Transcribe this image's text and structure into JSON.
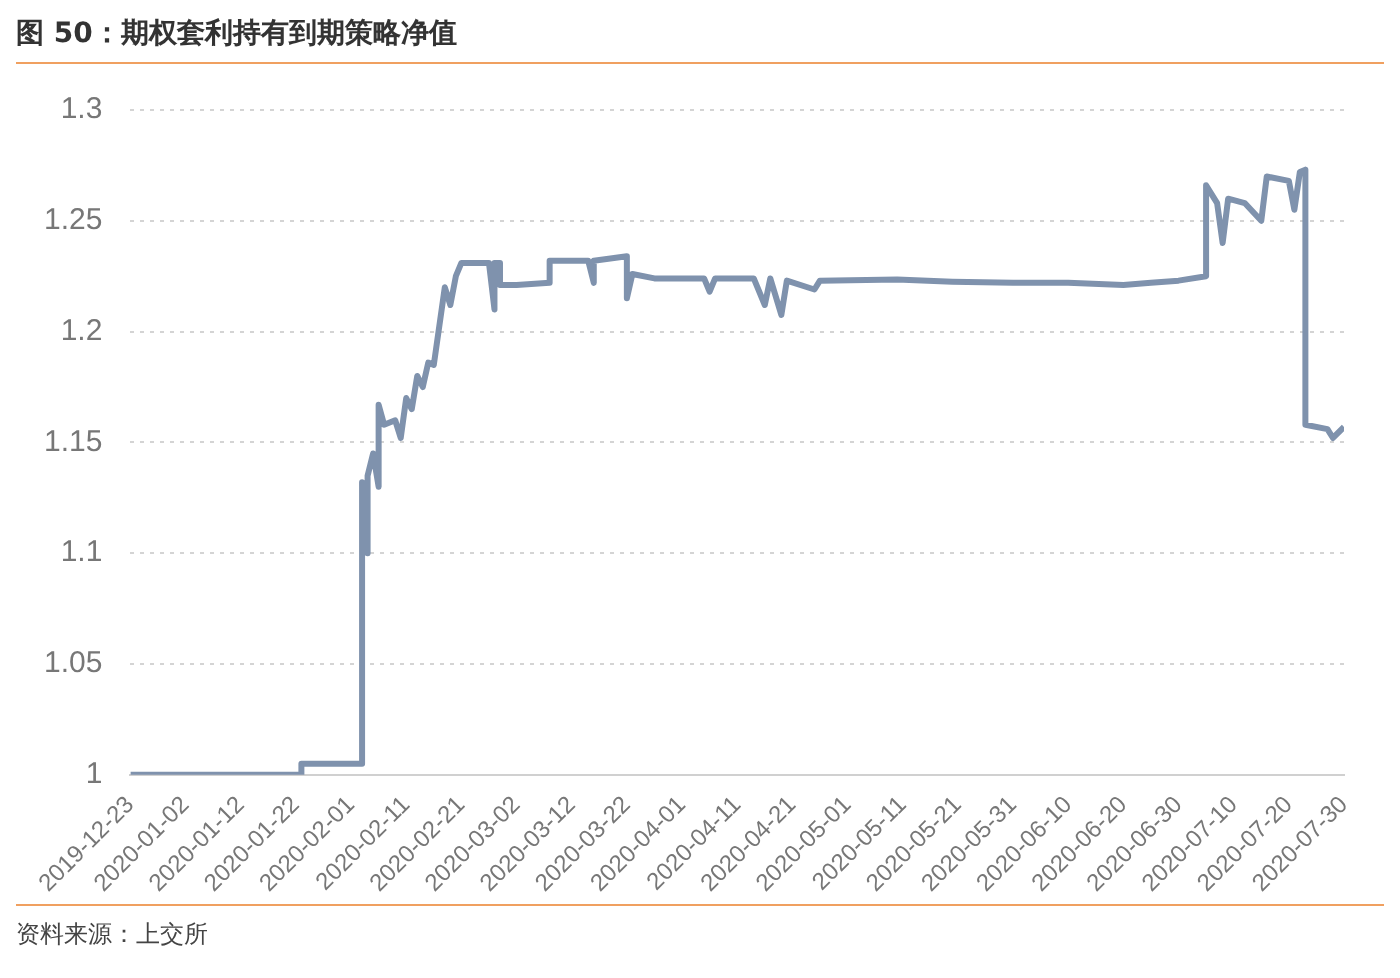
{
  "chart_data": {
    "type": "line",
    "title": "图 50：期权套利持有到期策略净值",
    "annotations": [
      "资料来源：上交所"
    ],
    "x": [
      "2019-12-23",
      "2020-01-23",
      "2020-01-23",
      "2020-02-03",
      "2020-02-03",
      "2020-02-04",
      "2020-02-04",
      "2020-02-05",
      "2020-02-06",
      "2020-02-06",
      "2020-02-07",
      "2020-02-09",
      "2020-02-10",
      "2020-02-11",
      "2020-02-12",
      "2020-02-13",
      "2020-02-14",
      "2020-02-15",
      "2020-02-16",
      "2020-02-18",
      "2020-02-19",
      "2020-02-20",
      "2020-02-21",
      "2020-02-26",
      "2020-02-27",
      "2020-02-27",
      "2020-02-28",
      "2020-02-28",
      "2020-03-02",
      "2020-03-08",
      "2020-03-08",
      "2020-03-15",
      "2020-03-16",
      "2020-03-16",
      "2020-03-22",
      "2020-03-22",
      "2020-03-23",
      "2020-03-27",
      "2020-04-05",
      "2020-04-06",
      "2020-04-07",
      "2020-04-14",
      "2020-04-16",
      "2020-04-17",
      "2020-04-19",
      "2020-04-20",
      "2020-04-25",
      "2020-04-26",
      "2020-05-10",
      "2020-05-20",
      "2020-05-31",
      "2020-06-10",
      "2020-06-20",
      "2020-06-25",
      "2020-06-30",
      "2020-07-05",
      "2020-07-05",
      "2020-07-07",
      "2020-07-08",
      "2020-07-09",
      "2020-07-12",
      "2020-07-15",
      "2020-07-16",
      "2020-07-20",
      "2020-07-21",
      "2020-07-22",
      "2020-07-23",
      "2020-07-23",
      "2020-07-27",
      "2020-07-28",
      "2020-07-30"
    ],
    "series": [
      {
        "color": "#7f92ad",
        "values": [
          1.0,
          1.0,
          1.005,
          1.005,
          1.132,
          1.1,
          1.135,
          1.145,
          1.13,
          1.167,
          1.158,
          1.16,
          1.152,
          1.17,
          1.165,
          1.18,
          1.175,
          1.186,
          1.185,
          1.22,
          1.212,
          1.225,
          1.231,
          1.231,
          1.21,
          1.231,
          1.231,
          1.221,
          1.221,
          1.222,
          1.232,
          1.232,
          1.222,
          1.232,
          1.234,
          1.215,
          1.226,
          1.224,
          1.224,
          1.218,
          1.224,
          1.224,
          1.212,
          1.224,
          1.2075,
          1.223,
          1.219,
          1.223,
          1.2235,
          1.2225,
          1.222,
          1.222,
          1.221,
          1.222,
          1.223,
          1.225,
          1.266,
          1.258,
          1.24,
          1.26,
          1.258,
          1.25,
          1.27,
          1.268,
          1.255,
          1.272,
          1.273,
          1.158,
          1.156,
          1.152,
          1.157
        ]
      }
    ],
    "xlim": [
      "2019-12-23",
      "2020-07-30"
    ],
    "xticks": [
      "2019-12-23",
      "2020-01-02",
      "2020-01-12",
      "2020-01-22",
      "2020-02-01",
      "2020-02-11",
      "2020-02-21",
      "2020-03-02",
      "2020-03-12",
      "2020-03-22",
      "2020-04-01",
      "2020-04-11",
      "2020-04-21",
      "2020-05-01",
      "2020-05-11",
      "2020-05-21",
      "2020-05-31",
      "2020-06-10",
      "2020-06-20",
      "2020-06-30",
      "2020-07-10",
      "2020-07-20",
      "2020-07-30"
    ],
    "ylim": [
      1,
      1.3
    ],
    "yticks": [
      1,
      1.05,
      1.1,
      1.15,
      1.2,
      1.25,
      1.3
    ],
    "grid": "y",
    "legend": false,
    "marker": "none",
    "line_style": "solid"
  }
}
